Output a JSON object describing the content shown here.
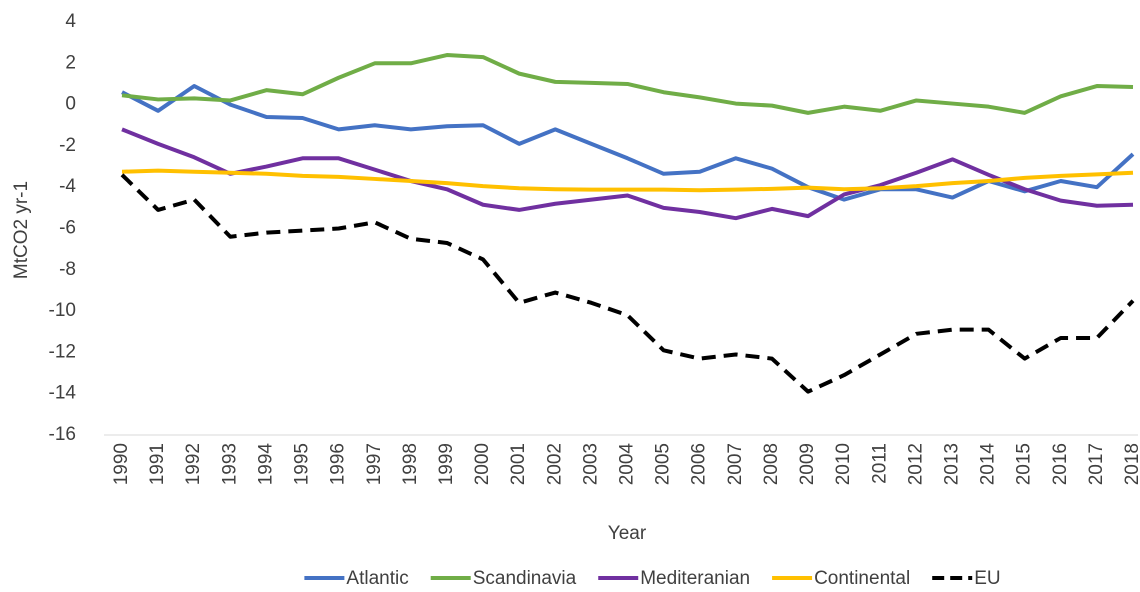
{
  "chart_data": {
    "type": "line",
    "x_label": "Year",
    "y_label": "MtCO2 yr-1",
    "categories": [
      "1990",
      "1991",
      "1992",
      "1993",
      "1994",
      "1995",
      "1996",
      "1997",
      "1998",
      "1999",
      "2000",
      "2001",
      "2002",
      "2003",
      "2004",
      "2005",
      "2006",
      "2007",
      "2008",
      "2009",
      "2010",
      "2011",
      "2012",
      "2013",
      "2014",
      "2015",
      "2016",
      "2017",
      "2018"
    ],
    "series": [
      {
        "name": "Atlantic",
        "color": "#4472c4",
        "dashed": false,
        "values": [
          0.6,
          -0.3,
          0.9,
          0,
          -0.6,
          -0.65,
          -1.2,
          -1.0,
          -1.2,
          -1.05,
          -1.0,
          -1.9,
          -1.2,
          -1.9,
          -2.6,
          -3.35,
          -3.25,
          -2.6,
          -3.1,
          -4.0,
          -4.6,
          -4.1,
          -4.1,
          -4.5,
          -3.7,
          -4.2,
          -3.7,
          -4.0,
          -2.4
        ]
      },
      {
        "name": "Scandinavia",
        "color": "#70ad47",
        "dashed": false,
        "values": [
          0.45,
          0.25,
          0.3,
          0.2,
          0.7,
          0.5,
          1.3,
          2.0,
          2.0,
          2.4,
          2.3,
          1.5,
          1.1,
          1.05,
          1.0,
          0.6,
          0.35,
          0.05,
          -0.05,
          -0.4,
          -0.1,
          -0.3,
          0.2,
          0.05,
          -0.1,
          -0.4,
          0.4,
          0.9,
          0.85
        ]
      },
      {
        "name": "Mediteranian",
        "color": "#7030a0",
        "dashed": false,
        "values": [
          -1.2,
          -1.9,
          -2.55,
          -3.35,
          -3.0,
          -2.6,
          -2.6,
          -3.15,
          -3.7,
          -4.1,
          -4.85,
          -5.1,
          -4.8,
          -4.6,
          -4.4,
          -5.0,
          -5.2,
          -5.5,
          -5.05,
          -5.4,
          -4.35,
          -3.9,
          -3.3,
          -2.65,
          -3.4,
          -4.1,
          -4.65,
          -4.9,
          -4.85
        ]
      },
      {
        "name": "Continental",
        "color": "#ffc000",
        "dashed": false,
        "values": [
          -3.25,
          -3.2,
          -3.25,
          -3.3,
          -3.35,
          -3.45,
          -3.5,
          -3.6,
          -3.7,
          -3.8,
          -3.95,
          -4.05,
          -4.1,
          -4.12,
          -4.12,
          -4.12,
          -4.15,
          -4.12,
          -4.08,
          -4.02,
          -4.1,
          -4.05,
          -3.95,
          -3.8,
          -3.7,
          -3.55,
          -3.45,
          -3.38,
          -3.3
        ]
      },
      {
        "name": "EU",
        "color": "#000000",
        "dashed": true,
        "values": [
          -3.4,
          -5.1,
          -4.6,
          -6.4,
          -6.2,
          -6.1,
          -6.0,
          -5.7,
          -6.5,
          -6.7,
          -7.5,
          -9.6,
          -9.1,
          -9.6,
          -10.2,
          -11.9,
          -12.3,
          -12.1,
          -12.3,
          -13.9,
          -13.1,
          -12.1,
          -11.1,
          -10.9,
          -10.9,
          -12.3,
          -11.3,
          -11.3,
          -9.5
        ]
      }
    ],
    "ylim": [
      -16,
      4
    ],
    "yticks": [
      -16,
      -14,
      -12,
      -10,
      -8,
      -6,
      -4,
      -2,
      0,
      2,
      4
    ],
    "grid": false,
    "legend": "bottom"
  }
}
